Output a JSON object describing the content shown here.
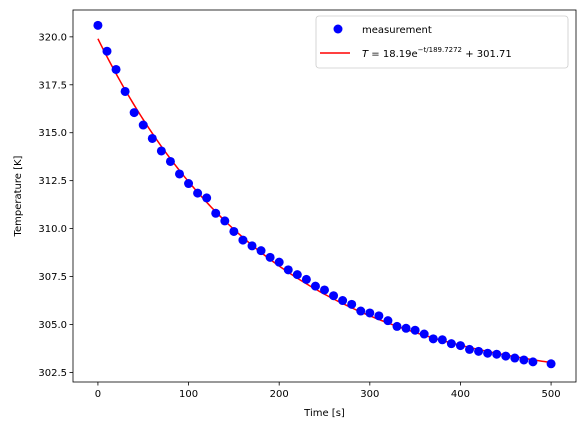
{
  "chart_data": {
    "type": "scatter",
    "title": "",
    "xlabel": "Time [s]",
    "ylabel": "Temperature [K]",
    "xlim": [
      -27.5,
      527.5
    ],
    "ylim": [
      302.0,
      321.4
    ],
    "xticks": [
      0,
      100,
      200,
      300,
      400,
      500
    ],
    "yticks": [
      302.5,
      305.0,
      307.5,
      310.0,
      312.5,
      315.0,
      317.5,
      320.0
    ],
    "xtick_labels": [
      "0",
      "100",
      "200",
      "300",
      "400",
      "500"
    ],
    "ytick_labels": [
      "302.5",
      "305.0",
      "307.5",
      "310.0",
      "312.5",
      "315.0",
      "317.5",
      "320.0"
    ],
    "grid": false,
    "legend_position": "top-right",
    "series": [
      {
        "name": "measurement",
        "kind": "scatter",
        "color": "#0000ff",
        "x": [
          0,
          10,
          20,
          30,
          40,
          50,
          60,
          70,
          80,
          90,
          100,
          110,
          120,
          130,
          140,
          150,
          160,
          170,
          180,
          190,
          200,
          210,
          220,
          230,
          240,
          250,
          260,
          270,
          280,
          290,
          300,
          310,
          320,
          330,
          340,
          350,
          360,
          370,
          380,
          390,
          400,
          410,
          420,
          430,
          440,
          450,
          460,
          470,
          480,
          500
        ],
        "y": [
          320.6,
          319.25,
          318.3,
          317.15,
          316.05,
          315.4,
          314.7,
          314.05,
          313.5,
          312.85,
          312.35,
          311.85,
          311.6,
          310.8,
          310.4,
          309.85,
          309.4,
          309.1,
          308.85,
          308.5,
          308.25,
          307.85,
          307.6,
          307.35,
          307.0,
          306.8,
          306.5,
          306.25,
          306.05,
          305.7,
          305.6,
          305.45,
          305.2,
          304.9,
          304.8,
          304.7,
          304.5,
          304.25,
          304.2,
          304.0,
          303.9,
          303.7,
          303.6,
          303.5,
          303.45,
          303.35,
          303.25,
          303.15,
          303.05,
          302.95
        ]
      },
      {
        "name": "T = 18.19e^{−t/189.7272} + 301.71",
        "kind": "line",
        "color": "#ff0000",
        "model": {
          "amplitude": 18.19,
          "tau": 189.7272,
          "offset": 301.71
        },
        "x_range": [
          0,
          500
        ]
      }
    ]
  },
  "legend": {
    "measurement_label": "measurement",
    "fit_prefix": "T",
    "fit_eq": " = 18.19e",
    "fit_exp": "−t/189.7272",
    "fit_suffix": " + 301.71"
  }
}
